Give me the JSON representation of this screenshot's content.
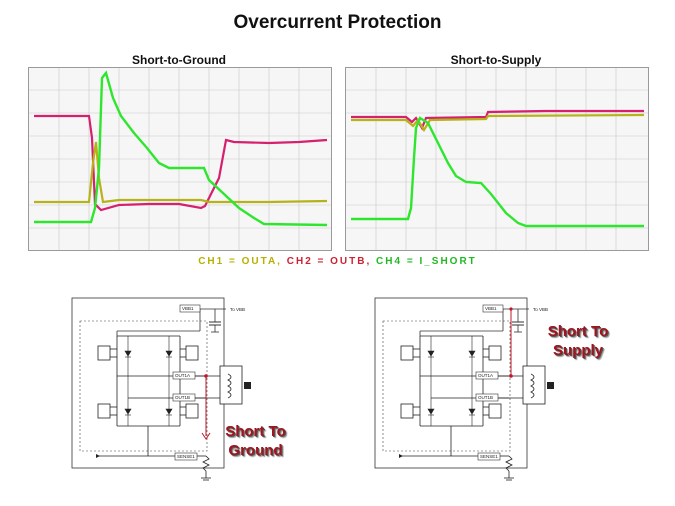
{
  "page": {
    "title": "Overcurrent Protection"
  },
  "scopes": [
    {
      "title": "Short-to-Ground"
    },
    {
      "title": "Short-to-Supply"
    }
  ],
  "legend": {
    "ch1": "CH1 = OUTA,",
    "ch2": "CH2 = OUTB,",
    "ch4": "CH4 = I_SHORT",
    "colors": {
      "ch1": "#b8b000",
      "ch2": "#cc2233",
      "ch4": "#22b822"
    }
  },
  "trace_colors": {
    "outa": "#b5b21a",
    "outb": "#d4206e",
    "ishort": "#2ee62e"
  },
  "schematics": [
    {
      "pins": {
        "vbb": "VBB1",
        "to_vbb": "To VBB",
        "outa": "OUT1A",
        "outb": "OUT1B",
        "sense": "SENSE1"
      },
      "label_line1": "Short To",
      "label_line2": "Ground"
    },
    {
      "pins": {
        "vbb": "VBB1",
        "to_vbb": "To VBB",
        "outa": "OUT1A",
        "outb": "OUT1B",
        "sense": "SENSE1"
      },
      "label_line1": "Short To",
      "label_line2": "Supply"
    }
  ],
  "colors": {
    "short_line": "#c0182a",
    "label": "#a0141e"
  }
}
